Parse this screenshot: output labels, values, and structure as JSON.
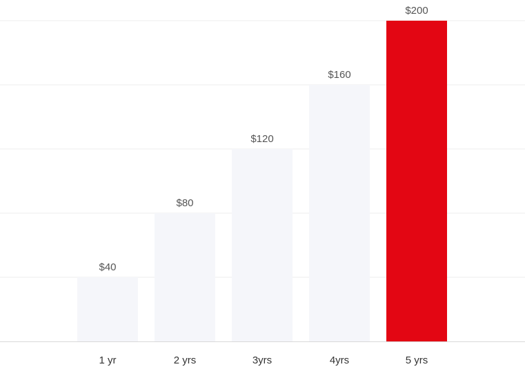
{
  "chart_data": {
    "type": "bar",
    "categories": [
      "1 yr",
      "2 yrs",
      "3yrs",
      "4yrs",
      "5 yrs"
    ],
    "values": [
      40,
      80,
      120,
      160,
      200
    ],
    "value_labels": [
      "$40",
      "$80",
      "$120",
      "$160",
      "$200"
    ],
    "ylim": [
      0,
      200
    ],
    "grid": true,
    "highlight_index": 4,
    "colors": {
      "bar": "#f5f6fa",
      "highlight": "#e30613",
      "grid": "#ececec",
      "axis": "#d8d8d8"
    }
  }
}
